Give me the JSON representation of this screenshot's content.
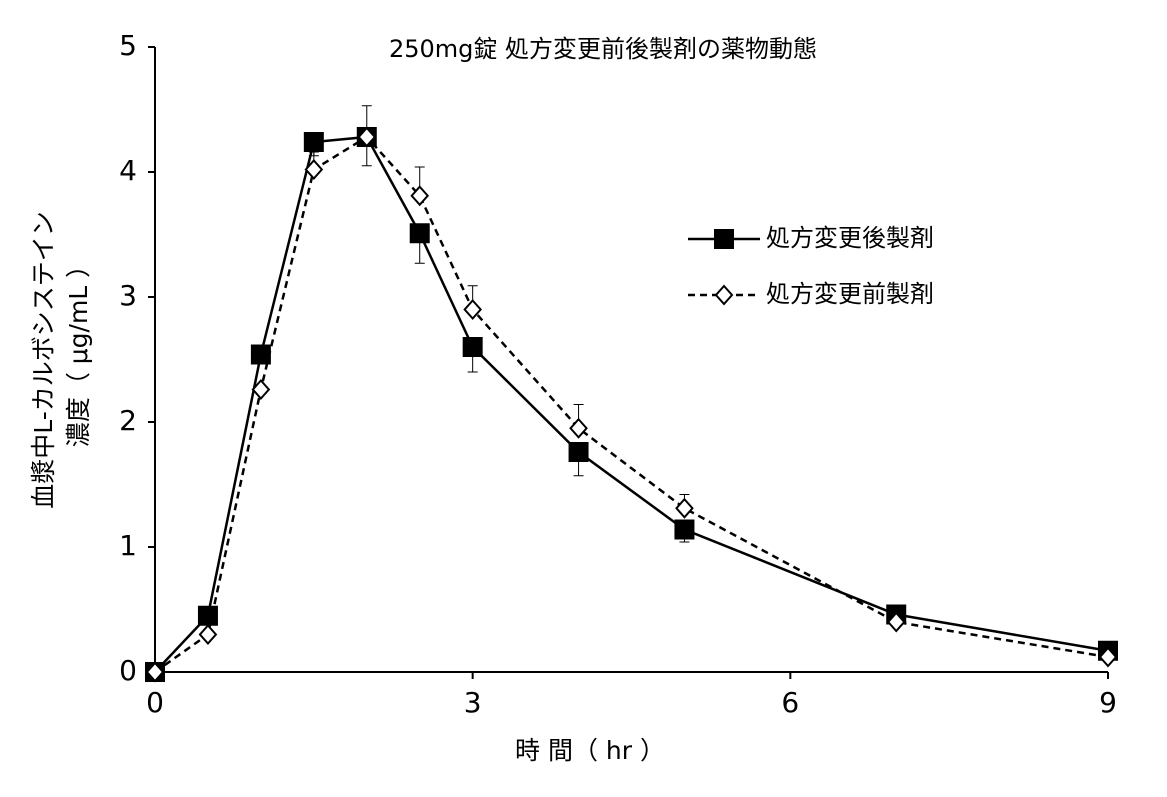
{
  "chart_data": {
    "type": "line",
    "title": "250mg錠 処方変更前後製剤の薬物動態",
    "x_label": "時 間（ hr ）",
    "y_label": [
      "血漿中L-カルボシステイン",
      "濃度（ μg/mL ）"
    ],
    "x": [
      0,
      0.5,
      1,
      1.5,
      2,
      2.5,
      3,
      4,
      5,
      7,
      9
    ],
    "series": [
      {
        "name": "処方変更後製剤",
        "color": "#000000",
        "marker": "square",
        "dash": false,
        "error_side": "down",
        "values": [
          0,
          0.45,
          2.54,
          4.24,
          4.28,
          3.51,
          2.6,
          1.76,
          1.14,
          0.46,
          0.17
        ],
        "errors": [
          null,
          null,
          null,
          0.11,
          0.23,
          0.24,
          0.2,
          0.19,
          0.1,
          null,
          null
        ]
      },
      {
        "name": "処方変更前製剤",
        "color": "#000000",
        "marker": "diamond",
        "dash": true,
        "error_side": "up",
        "values": [
          0,
          0.3,
          2.26,
          4.02,
          4.28,
          3.81,
          2.9,
          1.95,
          1.31,
          0.4,
          0.12
        ],
        "errors": [
          null,
          null,
          null,
          0.14,
          0.25,
          0.23,
          0.19,
          0.19,
          0.11,
          null,
          null
        ]
      }
    ],
    "xlim": [
      0,
      9
    ],
    "xticks": [
      0,
      3,
      6,
      9
    ],
    "ylim": [
      0,
      5
    ],
    "yticks": [
      0,
      1,
      2,
      3,
      4,
      5
    ],
    "grid": false,
    "legend": "upper right"
  }
}
